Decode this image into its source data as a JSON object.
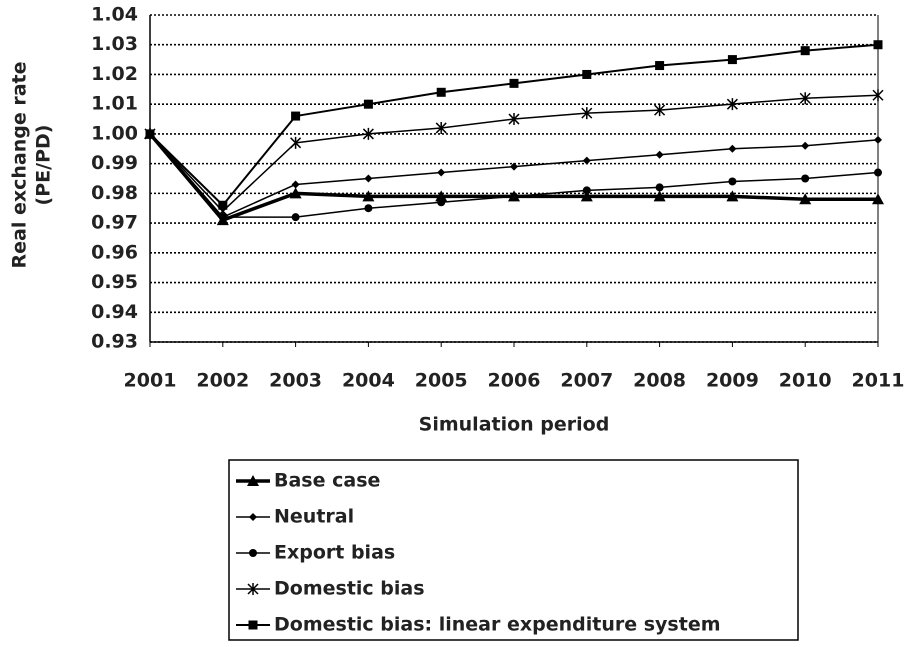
{
  "chart_data": {
    "type": "line",
    "y_label": [
      "Real exchange rate",
      "(PE/PD)"
    ],
    "x_label": "Simulation period",
    "categories": [
      "2001",
      "2002",
      "2003",
      "2004",
      "2005",
      "2006",
      "2007",
      "2008",
      "2009",
      "2010",
      "2011"
    ],
    "ylim": [
      0.93,
      1.04
    ],
    "yticks": [
      0.93,
      0.94,
      0.95,
      0.96,
      0.97,
      0.98,
      0.99,
      {
        "value": 1,
        "label": "1.00"
      },
      1.01,
      1.02,
      1.03,
      1.04
    ],
    "grid": true,
    "series": [
      {
        "name": "Base case",
        "color": "#000000",
        "marker": "triangle",
        "width": 3.5,
        "values": [
          1.0,
          0.971,
          0.98,
          0.979,
          0.979,
          0.979,
          0.979,
          0.979,
          0.979,
          0.978,
          0.978
        ]
      },
      {
        "name": "Neutral",
        "color": "#000000",
        "marker": "diamond",
        "width": 1.5,
        "values": [
          1.0,
          0.972,
          0.983,
          0.985,
          0.987,
          0.989,
          0.991,
          0.993,
          0.995,
          0.996,
          0.998
        ]
      },
      {
        "name": "Export bias",
        "color": "#000000",
        "marker": "circle",
        "width": 1.5,
        "values": [
          1.0,
          0.972,
          0.972,
          0.975,
          0.977,
          0.979,
          0.981,
          0.982,
          0.984,
          0.985,
          0.987
        ]
      },
      {
        "name": "Domestic bias",
        "color": "#000000",
        "marker": "asterisk",
        "width": 1.5,
        "values": [
          1.0,
          0.974,
          0.997,
          1.0,
          1.002,
          1.005,
          1.007,
          1.008,
          1.01,
          1.012,
          1.013
        ]
      },
      {
        "name": "Domestic bias: linear expenditure system",
        "color": "#000000",
        "marker": "square",
        "width": 2,
        "values": [
          1.0,
          0.976,
          1.006,
          1.01,
          1.014,
          1.017,
          1.02,
          1.023,
          1.025,
          1.028,
          1.03
        ]
      }
    ]
  }
}
